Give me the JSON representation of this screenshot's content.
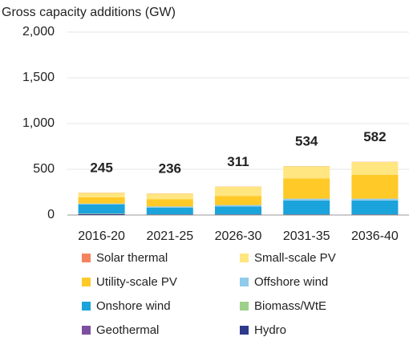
{
  "chart_data": {
    "type": "stacked_bar",
    "title": "Gross capacity additions (GW)",
    "categories": [
      "2016-20",
      "2021-25",
      "2026-30",
      "2031-35",
      "2036-40"
    ],
    "series": [
      {
        "name": "Solar thermal",
        "color": "#f4845f",
        "values": [
          2,
          2,
          2,
          2,
          2
        ]
      },
      {
        "name": "Small-scale PV",
        "color": "#ffe680",
        "values": [
          48,
          60,
          100,
          133,
          141
        ]
      },
      {
        "name": "Utility-scale PV",
        "color": "#ffc928",
        "values": [
          70,
          80,
          100,
          220,
          260
        ]
      },
      {
        "name": "Offshore wind",
        "color": "#8fcbea",
        "values": [
          8,
          15,
          15,
          20,
          20
        ]
      },
      {
        "name": "Onshore wind",
        "color": "#1ba3dc",
        "values": [
          100,
          70,
          85,
          150,
          150
        ]
      },
      {
        "name": "Biomass/WtE",
        "color": "#9dd18a",
        "values": [
          5,
          3,
          3,
          3,
          3
        ]
      },
      {
        "name": "Geothermal",
        "color": "#7d4fa0",
        "values": [
          2,
          1,
          1,
          1,
          1
        ]
      },
      {
        "name": "Hydro",
        "color": "#2e3a8c",
        "values": [
          10,
          5,
          5,
          5,
          5
        ]
      }
    ],
    "totals": [
      245,
      236,
      311,
      534,
      582
    ],
    "ylim": [
      0,
      2000
    ],
    "yticks": [
      0,
      500,
      {
        "value": 1000,
        "label": "1,000"
      },
      {
        "value": 1500,
        "label": "1,500"
      },
      {
        "value": 2000,
        "label": "2,000"
      }
    ],
    "grid": true
  }
}
